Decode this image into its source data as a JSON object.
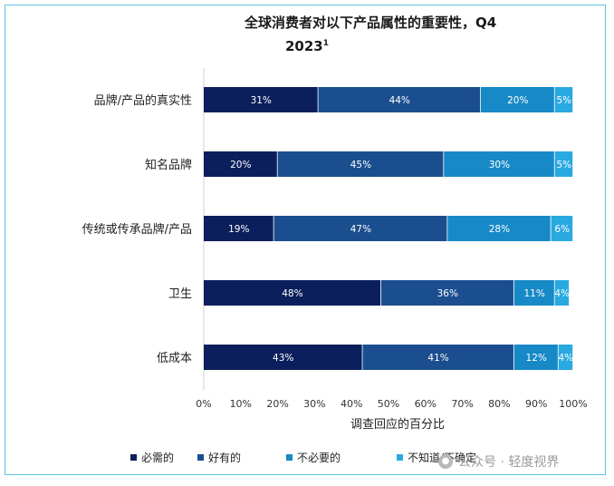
{
  "chart_data": {
    "type": "bar",
    "orientation": "horizontal",
    "stacked": true,
    "title_line1": "全球消费者对以下产品属性的重要性，Q4",
    "title_line2": "2023",
    "title_superscript": "1",
    "xlabel": "调查回应的百分比",
    "xlim": [
      0,
      100
    ],
    "x_ticks": [
      "0%",
      "10%",
      "20%",
      "30%",
      "40%",
      "50%",
      "60%",
      "70%",
      "80%",
      "90%",
      "100%"
    ],
    "categories": [
      "品牌/产品的真实性",
      "知名品牌",
      "传统或传承品牌/产品",
      "卫生",
      "低成本"
    ],
    "series": [
      {
        "name": "必需的",
        "color": "#0b1f5c",
        "values": [
          31,
          20,
          19,
          48,
          43
        ]
      },
      {
        "name": "好有的",
        "color": "#1b4e8f",
        "values": [
          44,
          45,
          47,
          36,
          41
        ]
      },
      {
        "name": "不必要的",
        "color": "#1789c7",
        "values": [
          20,
          30,
          28,
          11,
          12
        ]
      },
      {
        "name": "不知道/不确定",
        "color": "#29a9e0",
        "values": [
          5,
          5,
          6,
          4,
          4
        ]
      }
    ],
    "legend_position": "bottom"
  },
  "watermark": {
    "text": "公众号 · 轻度视界",
    "icon": "wechat-icon"
  }
}
